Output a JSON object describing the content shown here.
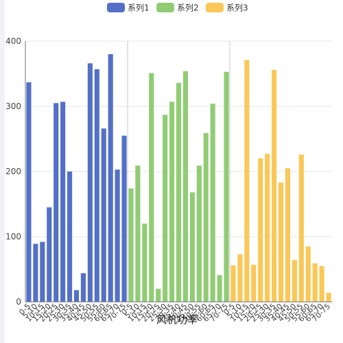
{
  "chart_data": {
    "type": "bar",
    "xlabel": "风机功率",
    "ylabel": "",
    "ylim": [
      0,
      400
    ],
    "yticks": [
      0,
      100,
      200,
      300,
      400
    ],
    "grid": true,
    "legend_position": "top-center",
    "categories": [
      "0-5",
      "5-10",
      "10-15",
      "15-20",
      "20-25",
      "25-30",
      "30-35",
      "35-40",
      "40-45",
      "45-50",
      "50-55",
      "55-60",
      "60-65",
      "65-70",
      "70-75"
    ],
    "series": [
      {
        "name": "系列1",
        "color": "#5470c6",
        "values": [
          337,
          89,
          92,
          145,
          305,
          307,
          200,
          18,
          44,
          366,
          357,
          266,
          380,
          203,
          255
        ]
      },
      {
        "name": "系列2",
        "color": "#91cc75",
        "values": [
          174,
          209,
          120,
          351,
          20,
          287,
          307,
          336,
          354,
          168,
          209,
          259,
          304,
          41,
          353
        ]
      },
      {
        "name": "系列3",
        "color": "#fac858",
        "values": [
          56,
          73,
          371,
          57,
          220,
          227,
          356,
          183,
          205,
          64,
          226,
          85,
          59,
          55,
          14
        ]
      }
    ]
  }
}
